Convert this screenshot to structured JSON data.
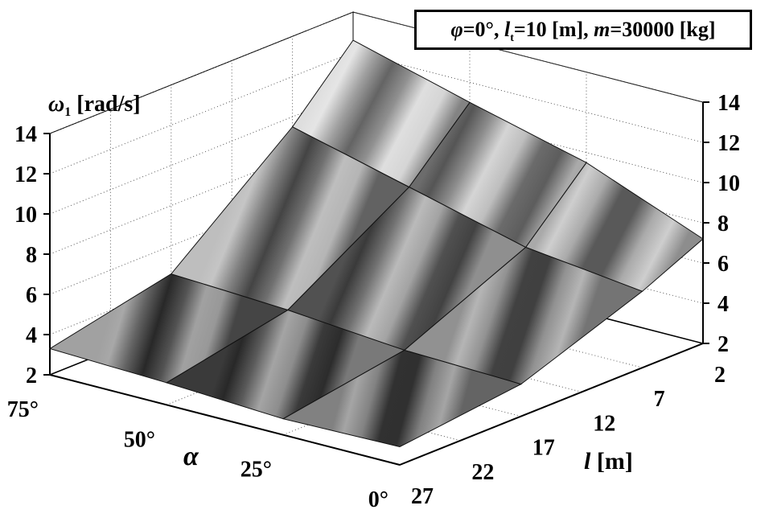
{
  "chart_data": {
    "type": "surface3d",
    "title": "",
    "annotation": {
      "phi": "φ",
      "phi_value": "=0°, ",
      "lt": "l",
      "lt_sub": "t",
      "lt_value": "=10 [m], ",
      "m": "m",
      "m_value": "=30000 [kg]"
    },
    "zlabel": {
      "symbol": "ω",
      "sub": "1",
      "unit": " [rad/s]"
    },
    "xlabel": "α",
    "ylabel": {
      "symbol": "l",
      "unit": " [m]"
    },
    "z_ticks": [
      "2",
      "4",
      "6",
      "8",
      "10",
      "12",
      "14"
    ],
    "zlim": [
      2,
      14
    ],
    "alpha_ticks": [
      "0°",
      "25°",
      "50°",
      "75°"
    ],
    "alpha_values": [
      0,
      25,
      50,
      75
    ],
    "l_ticks": [
      "2",
      "7",
      "12",
      "17",
      "22",
      "27"
    ],
    "l_values": [
      2,
      7,
      12,
      17,
      22,
      27
    ],
    "surface": {
      "alpha": [
        0,
        25,
        50,
        75
      ],
      "l": [
        27,
        17,
        7,
        2
      ],
      "omega": [
        [
          2.9,
          2.8,
          3.1,
          3.3
        ],
        [
          3.6,
          3.8,
          4.3,
          4.6
        ],
        [
          5.8,
          6.5,
          8.0,
          9.5
        ],
        [
          7.2,
          9.5,
          11.0,
          12.6
        ]
      ]
    },
    "grid": true,
    "colormap": "grayscale"
  }
}
